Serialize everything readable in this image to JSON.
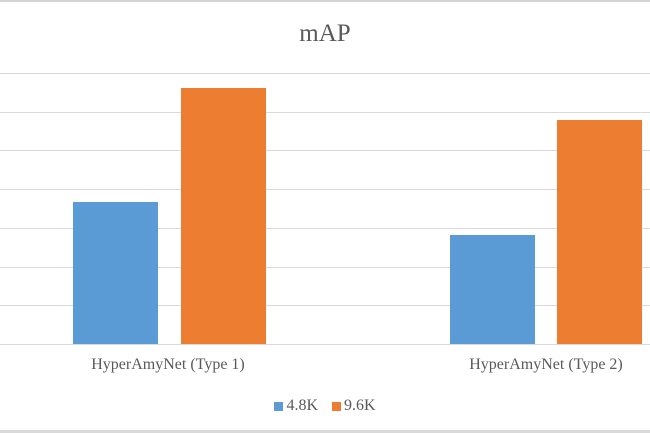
{
  "chart_data": {
    "type": "bar",
    "title": "mAP",
    "xlabel": "",
    "ylabel": "",
    "categories": [
      "HyperAmyNet (Type 1)",
      "HyperAmyNet (Type 2)"
    ],
    "series": [
      {
        "name": "4.8K",
        "color": "#5b9bd5",
        "values": [
          3.67,
          2.82
        ]
      },
      {
        "name": "9.6K",
        "color": "#ed7d31",
        "values": [
          6.61,
          5.79
        ]
      }
    ],
    "value_units": "gridline intervals (y-axis tick labels cropped out of view)",
    "ylim": [
      0,
      7
    ],
    "gridlines": 7,
    "grid": true,
    "legend_position": "bottom"
  },
  "title": "mAP",
  "categories": [
    "HyperAmyNet (Type 1)",
    "HyperAmyNet (Type 2)"
  ],
  "legend": [
    {
      "label": "4.8K",
      "color": "#5b9bd5"
    },
    {
      "label": "9.6K",
      "color": "#ed7d31"
    }
  ]
}
